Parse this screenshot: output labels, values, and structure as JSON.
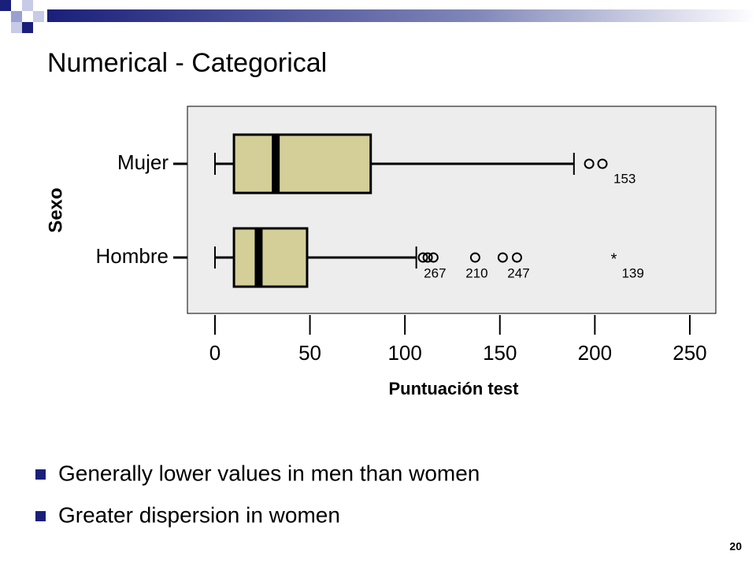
{
  "slide": {
    "title": "Numerical - Categorical",
    "bullets": [
      "Generally lower values in men than women",
      "Greater dispersion in women"
    ],
    "page_number": "20"
  },
  "chart_data": {
    "type": "box",
    "x_label": "Puntuación test",
    "y_label": "Sexo",
    "categories": [
      "Mujer",
      "Hombre"
    ],
    "boxes": [
      {
        "whislo": 0,
        "q1": 10,
        "med": 32,
        "q3": 82,
        "whishi": 189,
        "outliers": [
          {
            "value": 197
          },
          {
            "value": 204,
            "label": "153"
          }
        ],
        "extremes": []
      },
      {
        "whislo": 0,
        "q1": 10,
        "med": 23,
        "q3": 48.5,
        "whishi": 106,
        "outliers": [
          {
            "value": 109.5
          },
          {
            "value": 112
          },
          {
            "value": 115,
            "label": "267"
          },
          {
            "value": 137,
            "label": "210"
          },
          {
            "value": 151.5
          },
          {
            "value": 159,
            "label": "247"
          }
        ],
        "extremes": [
          {
            "value": 210,
            "label": "139"
          }
        ]
      }
    ],
    "color": "#d4cf98",
    "xlim": [
      -14.5,
      263.7
    ],
    "xticks": [
      0,
      50,
      100,
      150,
      200,
      250
    ]
  }
}
